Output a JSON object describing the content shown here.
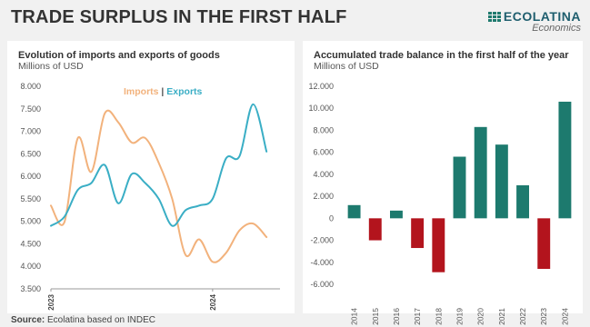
{
  "header": {
    "title": "TRADE SURPLUS IN THE FIRST HALF",
    "logo_name": "ECOLATINA",
    "logo_sub": "Economics"
  },
  "colors": {
    "imports": "#f2b27c",
    "exports": "#3aaec5",
    "positive": "#1d7a6e",
    "negative": "#b3141d"
  },
  "source": {
    "label": "Source:",
    "text": " Ecolatina based on INDEC"
  },
  "chart_data": [
    {
      "type": "line",
      "title": "Evolution of imports and exports of goods",
      "subtitle": "Millions of USD",
      "ylim": [
        3500,
        8000
      ],
      "yticks": [
        "8.000",
        "7.500",
        "7.000",
        "6.500",
        "6.000",
        "5.500",
        "5.000",
        "4.500",
        "4.000",
        "3.500"
      ],
      "ytick_values": [
        8000,
        7500,
        7000,
        6500,
        6000,
        5500,
        5000,
        4500,
        4000,
        3500
      ],
      "x": [
        0,
        1,
        2,
        3,
        4,
        5,
        6,
        7,
        8,
        9,
        10,
        11,
        12,
        13,
        14,
        15,
        16,
        17
      ],
      "xtick_labels": [
        {
          "x": 0,
          "label": "2023"
        },
        {
          "x": 12,
          "label": "2024"
        }
      ],
      "legend": {
        "imports": "Imports",
        "separator": " | ",
        "exports": "Exports"
      },
      "series": [
        {
          "name": "Imports",
          "values": [
            5350,
            4980,
            6850,
            6100,
            7400,
            7200,
            6750,
            6850,
            6300,
            5500,
            4250,
            4600,
            4100,
            4300,
            4800,
            4950,
            4650,
            null
          ]
        },
        {
          "name": "Exports",
          "values": [
            4900,
            5100,
            5700,
            5850,
            6250,
            5400,
            6050,
            5850,
            5500,
            4900,
            5250,
            5350,
            5500,
            6400,
            6450,
            7600,
            6550,
            null
          ]
        }
      ]
    },
    {
      "type": "bar",
      "title": "Accumulated trade balance in the first half of the year",
      "subtitle": "Millions of USD",
      "categories": [
        "2014",
        "2015",
        "2016",
        "2017",
        "2018",
        "2019",
        "2020",
        "2021",
        "2022",
        "2023",
        "2024"
      ],
      "values": [
        1200,
        -2000,
        700,
        -2700,
        -4900,
        5600,
        8300,
        6700,
        3000,
        -4600,
        10600
      ],
      "ylim": [
        -6000,
        12000
      ],
      "yticks": [
        "12.000",
        "10.000",
        "8.000",
        "6.000",
        "4.000",
        "2.000",
        "0",
        "-2.000",
        "-4.000",
        "-6.000"
      ],
      "ytick_values": [
        12000,
        10000,
        8000,
        6000,
        4000,
        2000,
        0,
        -2000,
        -4000,
        -6000
      ]
    }
  ]
}
